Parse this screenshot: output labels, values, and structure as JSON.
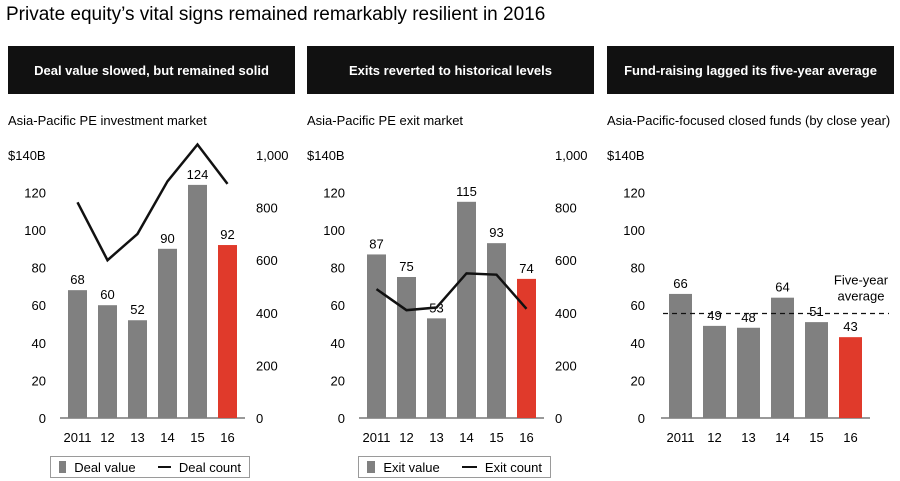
{
  "title": "Private equity’s vital signs remained remarkably resilient in 2016",
  "colors": {
    "bar": "#808080",
    "highlight": "#e03a2b",
    "line": "#111111",
    "header_bg": "#111111"
  },
  "chart_data": [
    {
      "type": "bar",
      "header": "Deal value slowed, but remained solid",
      "subtitle": "Asia-Pacific PE investment market",
      "categories": [
        "2011",
        "12",
        "13",
        "14",
        "15",
        "16"
      ],
      "series": [
        {
          "name": "Deal value",
          "values": [
            68,
            60,
            52,
            90,
            124,
            92
          ],
          "highlight_index": 5
        },
        {
          "name": "Deal count",
          "type": "line",
          "axis": "right",
          "values": [
            820,
            600,
            700,
            900,
            1040,
            890
          ]
        }
      ],
      "y_left": {
        "unit_label": "$140B",
        "ticks": [
          "0",
          "20",
          "40",
          "60",
          "80",
          "100",
          "120"
        ],
        "range": [
          0,
          140
        ]
      },
      "y_right": {
        "ticks": [
          "0",
          "200",
          "400",
          "600",
          "800",
          "1,000"
        ],
        "range": [
          0,
          1000
        ]
      },
      "legend": [
        "Deal value",
        "Deal count"
      ]
    },
    {
      "type": "bar",
      "header": "Exits reverted to historical levels",
      "subtitle": "Asia-Pacific PE exit market",
      "categories": [
        "2011",
        "12",
        "13",
        "14",
        "15",
        "16"
      ],
      "series": [
        {
          "name": "Exit value",
          "values": [
            87,
            75,
            53,
            115,
            93,
            74
          ],
          "highlight_index": 5
        },
        {
          "name": "Exit count",
          "type": "line",
          "axis": "right",
          "values": [
            490,
            410,
            420,
            550,
            545,
            415
          ]
        }
      ],
      "y_left": {
        "unit_label": "$140B",
        "ticks": [
          "0",
          "20",
          "40",
          "60",
          "80",
          "100",
          "120"
        ],
        "range": [
          0,
          140
        ]
      },
      "y_right": {
        "ticks": [
          "0",
          "200",
          "400",
          "600",
          "800",
          "1,000"
        ],
        "range": [
          0,
          1000
        ]
      },
      "legend": [
        "Exit value",
        "Exit count"
      ]
    },
    {
      "type": "bar",
      "header": "Fund-raising lagged its five-year average",
      "subtitle": "Asia-Pacific-focused closed funds (by close year)",
      "categories": [
        "2011",
        "12",
        "13",
        "14",
        "15",
        "16"
      ],
      "series": [
        {
          "values": [
            66,
            49,
            48,
            64,
            51,
            43
          ],
          "highlight_index": 5
        }
      ],
      "reference_line": {
        "label_lines": [
          "Five-year",
          "average"
        ],
        "value": 55.6
      },
      "y_left": {
        "unit_label": "$140B",
        "ticks": [
          "0",
          "20",
          "40",
          "60",
          "80",
          "100",
          "120"
        ],
        "range": [
          0,
          140
        ]
      }
    }
  ]
}
